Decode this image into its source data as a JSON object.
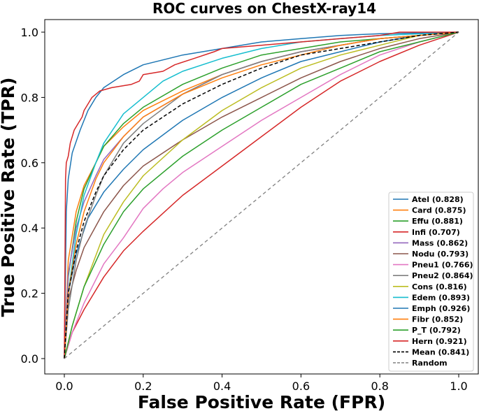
{
  "chart_data": {
    "type": "line",
    "title": "ROC curves on ChestX-ray14",
    "xlabel": "False Positive Rate (FPR)",
    "ylabel": "True Positive Rate (TPR)",
    "xlim": [
      0,
      1
    ],
    "ylim": [
      0,
      1
    ],
    "xticks": [
      "0.0",
      "0.2",
      "0.4",
      "0.6",
      "0.8",
      "1.0"
    ],
    "yticks": [
      "0.0",
      "0.2",
      "0.4",
      "0.6",
      "0.8",
      "1.0"
    ],
    "legend_position": "bottom-right",
    "colors": {
      "blue": "#1f77b4",
      "orange": "#ff7f0e",
      "green": "#2ca02c",
      "red": "#d62728",
      "purple": "#9467bd",
      "brown": "#8c564b",
      "pink": "#e377c2",
      "gray": "#7f7f7f",
      "olive": "#bcbd22",
      "cyan": "#17becf"
    },
    "series": [
      {
        "name": "Atel (0.828)",
        "color": "#1f77b4",
        "points": [
          [
            0,
            0
          ],
          [
            0.01,
            0.2
          ],
          [
            0.03,
            0.32
          ],
          [
            0.06,
            0.43
          ],
          [
            0.1,
            0.51
          ],
          [
            0.15,
            0.58
          ],
          [
            0.2,
            0.64
          ],
          [
            0.3,
            0.73
          ],
          [
            0.4,
            0.8
          ],
          [
            0.5,
            0.86
          ],
          [
            0.6,
            0.91
          ],
          [
            0.7,
            0.94
          ],
          [
            0.8,
            0.97
          ],
          [
            0.9,
            0.99
          ],
          [
            1,
            1
          ]
        ]
      },
      {
        "name": "Card (0.875)",
        "color": "#ff7f0e",
        "points": [
          [
            0,
            0
          ],
          [
            0.01,
            0.3
          ],
          [
            0.03,
            0.45
          ],
          [
            0.05,
            0.53
          ],
          [
            0.08,
            0.6
          ],
          [
            0.1,
            0.65
          ],
          [
            0.15,
            0.71
          ],
          [
            0.2,
            0.76
          ],
          [
            0.3,
            0.82
          ],
          [
            0.4,
            0.87
          ],
          [
            0.5,
            0.91
          ],
          [
            0.6,
            0.94
          ],
          [
            0.7,
            0.96
          ],
          [
            0.8,
            0.98
          ],
          [
            0.9,
            0.99
          ],
          [
            1,
            1
          ]
        ]
      },
      {
        "name": "Effu (0.881)",
        "color": "#2ca02c",
        "points": [
          [
            0,
            0
          ],
          [
            0.01,
            0.25
          ],
          [
            0.03,
            0.42
          ],
          [
            0.05,
            0.52
          ],
          [
            0.08,
            0.6
          ],
          [
            0.1,
            0.65
          ],
          [
            0.15,
            0.72
          ],
          [
            0.2,
            0.77
          ],
          [
            0.3,
            0.84
          ],
          [
            0.4,
            0.89
          ],
          [
            0.5,
            0.93
          ],
          [
            0.6,
            0.95
          ],
          [
            0.7,
            0.97
          ],
          [
            0.8,
            0.98
          ],
          [
            0.9,
            0.99
          ],
          [
            1,
            1
          ]
        ]
      },
      {
        "name": "Infi (0.707)",
        "color": "#d62728",
        "points": [
          [
            0,
            0
          ],
          [
            0.02,
            0.08
          ],
          [
            0.05,
            0.15
          ],
          [
            0.1,
            0.25
          ],
          [
            0.15,
            0.33
          ],
          [
            0.2,
            0.39
          ],
          [
            0.3,
            0.5
          ],
          [
            0.4,
            0.59
          ],
          [
            0.5,
            0.68
          ],
          [
            0.6,
            0.77
          ],
          [
            0.7,
            0.85
          ],
          [
            0.8,
            0.91
          ],
          [
            0.9,
            0.96
          ],
          [
            1,
            1
          ]
        ]
      },
      {
        "name": "Mass (0.862)",
        "color": "#9467bd",
        "points": [
          [
            0,
            0
          ],
          [
            0.01,
            0.26
          ],
          [
            0.03,
            0.4
          ],
          [
            0.05,
            0.48
          ],
          [
            0.08,
            0.56
          ],
          [
            0.1,
            0.61
          ],
          [
            0.15,
            0.68
          ],
          [
            0.2,
            0.74
          ],
          [
            0.3,
            0.81
          ],
          [
            0.4,
            0.87
          ],
          [
            0.5,
            0.91
          ],
          [
            0.6,
            0.94
          ],
          [
            0.7,
            0.96
          ],
          [
            0.8,
            0.98
          ],
          [
            0.9,
            0.99
          ],
          [
            1,
            1
          ]
        ]
      },
      {
        "name": "Nodu (0.793)",
        "color": "#8c564b",
        "points": [
          [
            0,
            0
          ],
          [
            0.01,
            0.18
          ],
          [
            0.03,
            0.27
          ],
          [
            0.05,
            0.34
          ],
          [
            0.1,
            0.45
          ],
          [
            0.15,
            0.53
          ],
          [
            0.2,
            0.59
          ],
          [
            0.3,
            0.67
          ],
          [
            0.4,
            0.74
          ],
          [
            0.5,
            0.8
          ],
          [
            0.6,
            0.86
          ],
          [
            0.7,
            0.91
          ],
          [
            0.8,
            0.95
          ],
          [
            0.9,
            0.98
          ],
          [
            1,
            1
          ]
        ]
      },
      {
        "name": "Pneu1 (0.766)",
        "color": "#e377c2",
        "points": [
          [
            0,
            0
          ],
          [
            0.02,
            0.08
          ],
          [
            0.05,
            0.17
          ],
          [
            0.1,
            0.29
          ],
          [
            0.15,
            0.37
          ],
          [
            0.2,
            0.46
          ],
          [
            0.25,
            0.52
          ],
          [
            0.3,
            0.57
          ],
          [
            0.4,
            0.65
          ],
          [
            0.5,
            0.73
          ],
          [
            0.6,
            0.8
          ],
          [
            0.7,
            0.87
          ],
          [
            0.8,
            0.93
          ],
          [
            0.9,
            0.97
          ],
          [
            1,
            1
          ]
        ]
      },
      {
        "name": "Pneu2 (0.864)",
        "color": "#7f7f7f",
        "points": [
          [
            0,
            0
          ],
          [
            0.01,
            0.15
          ],
          [
            0.03,
            0.3
          ],
          [
            0.05,
            0.4
          ],
          [
            0.08,
            0.5
          ],
          [
            0.1,
            0.56
          ],
          [
            0.15,
            0.66
          ],
          [
            0.2,
            0.72
          ],
          [
            0.3,
            0.81
          ],
          [
            0.4,
            0.87
          ],
          [
            0.5,
            0.91
          ],
          [
            0.6,
            0.94
          ],
          [
            0.7,
            0.96
          ],
          [
            0.8,
            0.98
          ],
          [
            0.9,
            0.99
          ],
          [
            1,
            1
          ]
        ]
      },
      {
        "name": "Cons (0.816)",
        "color": "#bcbd22",
        "points": [
          [
            0,
            0
          ],
          [
            0.02,
            0.1
          ],
          [
            0.05,
            0.22
          ],
          [
            0.1,
            0.38
          ],
          [
            0.15,
            0.48
          ],
          [
            0.2,
            0.56
          ],
          [
            0.3,
            0.67
          ],
          [
            0.4,
            0.76
          ],
          [
            0.5,
            0.83
          ],
          [
            0.6,
            0.89
          ],
          [
            0.7,
            0.93
          ],
          [
            0.8,
            0.96
          ],
          [
            0.9,
            0.99
          ],
          [
            1,
            1
          ]
        ]
      },
      {
        "name": "Edem (0.893)",
        "color": "#17becf",
        "points": [
          [
            0,
            0
          ],
          [
            0.01,
            0.2
          ],
          [
            0.03,
            0.38
          ],
          [
            0.05,
            0.5
          ],
          [
            0.08,
            0.6
          ],
          [
            0.1,
            0.66
          ],
          [
            0.15,
            0.75
          ],
          [
            0.2,
            0.8
          ],
          [
            0.25,
            0.85
          ],
          [
            0.3,
            0.88
          ],
          [
            0.4,
            0.92
          ],
          [
            0.5,
            0.95
          ],
          [
            0.6,
            0.97
          ],
          [
            0.7,
            0.98
          ],
          [
            0.8,
            0.99
          ],
          [
            1,
            1
          ]
        ]
      },
      {
        "name": "Emph (0.926)",
        "color": "#1f77b4",
        "points": [
          [
            0,
            0
          ],
          [
            0.005,
            0.45
          ],
          [
            0.01,
            0.55
          ],
          [
            0.02,
            0.63
          ],
          [
            0.04,
            0.7
          ],
          [
            0.06,
            0.76
          ],
          [
            0.08,
            0.8
          ],
          [
            0.1,
            0.83
          ],
          [
            0.15,
            0.87
          ],
          [
            0.2,
            0.9
          ],
          [
            0.3,
            0.93
          ],
          [
            0.4,
            0.95
          ],
          [
            0.5,
            0.97
          ],
          [
            0.6,
            0.98
          ],
          [
            0.7,
            0.99
          ],
          [
            0.8,
            0.995
          ],
          [
            1,
            1
          ]
        ]
      },
      {
        "name": "Fibr (0.852)",
        "color": "#ff7f0e",
        "points": [
          [
            0,
            0
          ],
          [
            0.01,
            0.2
          ],
          [
            0.03,
            0.35
          ],
          [
            0.05,
            0.45
          ],
          [
            0.08,
            0.55
          ],
          [
            0.1,
            0.6
          ],
          [
            0.15,
            0.68
          ],
          [
            0.2,
            0.74
          ],
          [
            0.3,
            0.81
          ],
          [
            0.4,
            0.86
          ],
          [
            0.5,
            0.9
          ],
          [
            0.6,
            0.93
          ],
          [
            0.7,
            0.96
          ],
          [
            0.8,
            0.98
          ],
          [
            0.9,
            0.99
          ],
          [
            1,
            1
          ]
        ]
      },
      {
        "name": "P_T (0.792)",
        "color": "#2ca02c",
        "points": [
          [
            0,
            0
          ],
          [
            0.02,
            0.1
          ],
          [
            0.05,
            0.22
          ],
          [
            0.1,
            0.35
          ],
          [
            0.15,
            0.45
          ],
          [
            0.2,
            0.52
          ],
          [
            0.3,
            0.62
          ],
          [
            0.4,
            0.7
          ],
          [
            0.5,
            0.77
          ],
          [
            0.6,
            0.84
          ],
          [
            0.7,
            0.89
          ],
          [
            0.8,
            0.94
          ],
          [
            0.9,
            0.97
          ],
          [
            1,
            1
          ]
        ]
      },
      {
        "name": "Hern (0.921)",
        "color": "#d62728",
        "points": [
          [
            0,
            0
          ],
          [
            0.003,
            0.55
          ],
          [
            0.005,
            0.6
          ],
          [
            0.01,
            0.62
          ],
          [
            0.015,
            0.66
          ],
          [
            0.025,
            0.7
          ],
          [
            0.035,
            0.72
          ],
          [
            0.045,
            0.74
          ],
          [
            0.05,
            0.76
          ],
          [
            0.07,
            0.8
          ],
          [
            0.09,
            0.82
          ],
          [
            0.12,
            0.83
          ],
          [
            0.17,
            0.84
          ],
          [
            0.19,
            0.85
          ],
          [
            0.2,
            0.87
          ],
          [
            0.25,
            0.88
          ],
          [
            0.28,
            0.9
          ],
          [
            0.33,
            0.92
          ],
          [
            0.38,
            0.94
          ],
          [
            0.4,
            0.95
          ],
          [
            0.5,
            0.96
          ],
          [
            0.6,
            0.97
          ],
          [
            0.7,
            0.98
          ],
          [
            0.8,
            0.99
          ],
          [
            0.85,
            1
          ],
          [
            1,
            1
          ]
        ]
      },
      {
        "name": "Mean (0.841)",
        "color": "#000000",
        "dashed": true,
        "points": [
          [
            0,
            0
          ],
          [
            0.01,
            0.2
          ],
          [
            0.03,
            0.33
          ],
          [
            0.05,
            0.42
          ],
          [
            0.08,
            0.51
          ],
          [
            0.1,
            0.56
          ],
          [
            0.15,
            0.64
          ],
          [
            0.2,
            0.7
          ],
          [
            0.3,
            0.78
          ],
          [
            0.4,
            0.84
          ],
          [
            0.5,
            0.89
          ],
          [
            0.6,
            0.93
          ],
          [
            0.7,
            0.95
          ],
          [
            0.8,
            0.97
          ],
          [
            0.9,
            0.99
          ],
          [
            1,
            1
          ]
        ]
      },
      {
        "name": "Random",
        "color": "#808080",
        "dashed": true,
        "points": [
          [
            0,
            0
          ],
          [
            1,
            1
          ]
        ]
      }
    ]
  }
}
